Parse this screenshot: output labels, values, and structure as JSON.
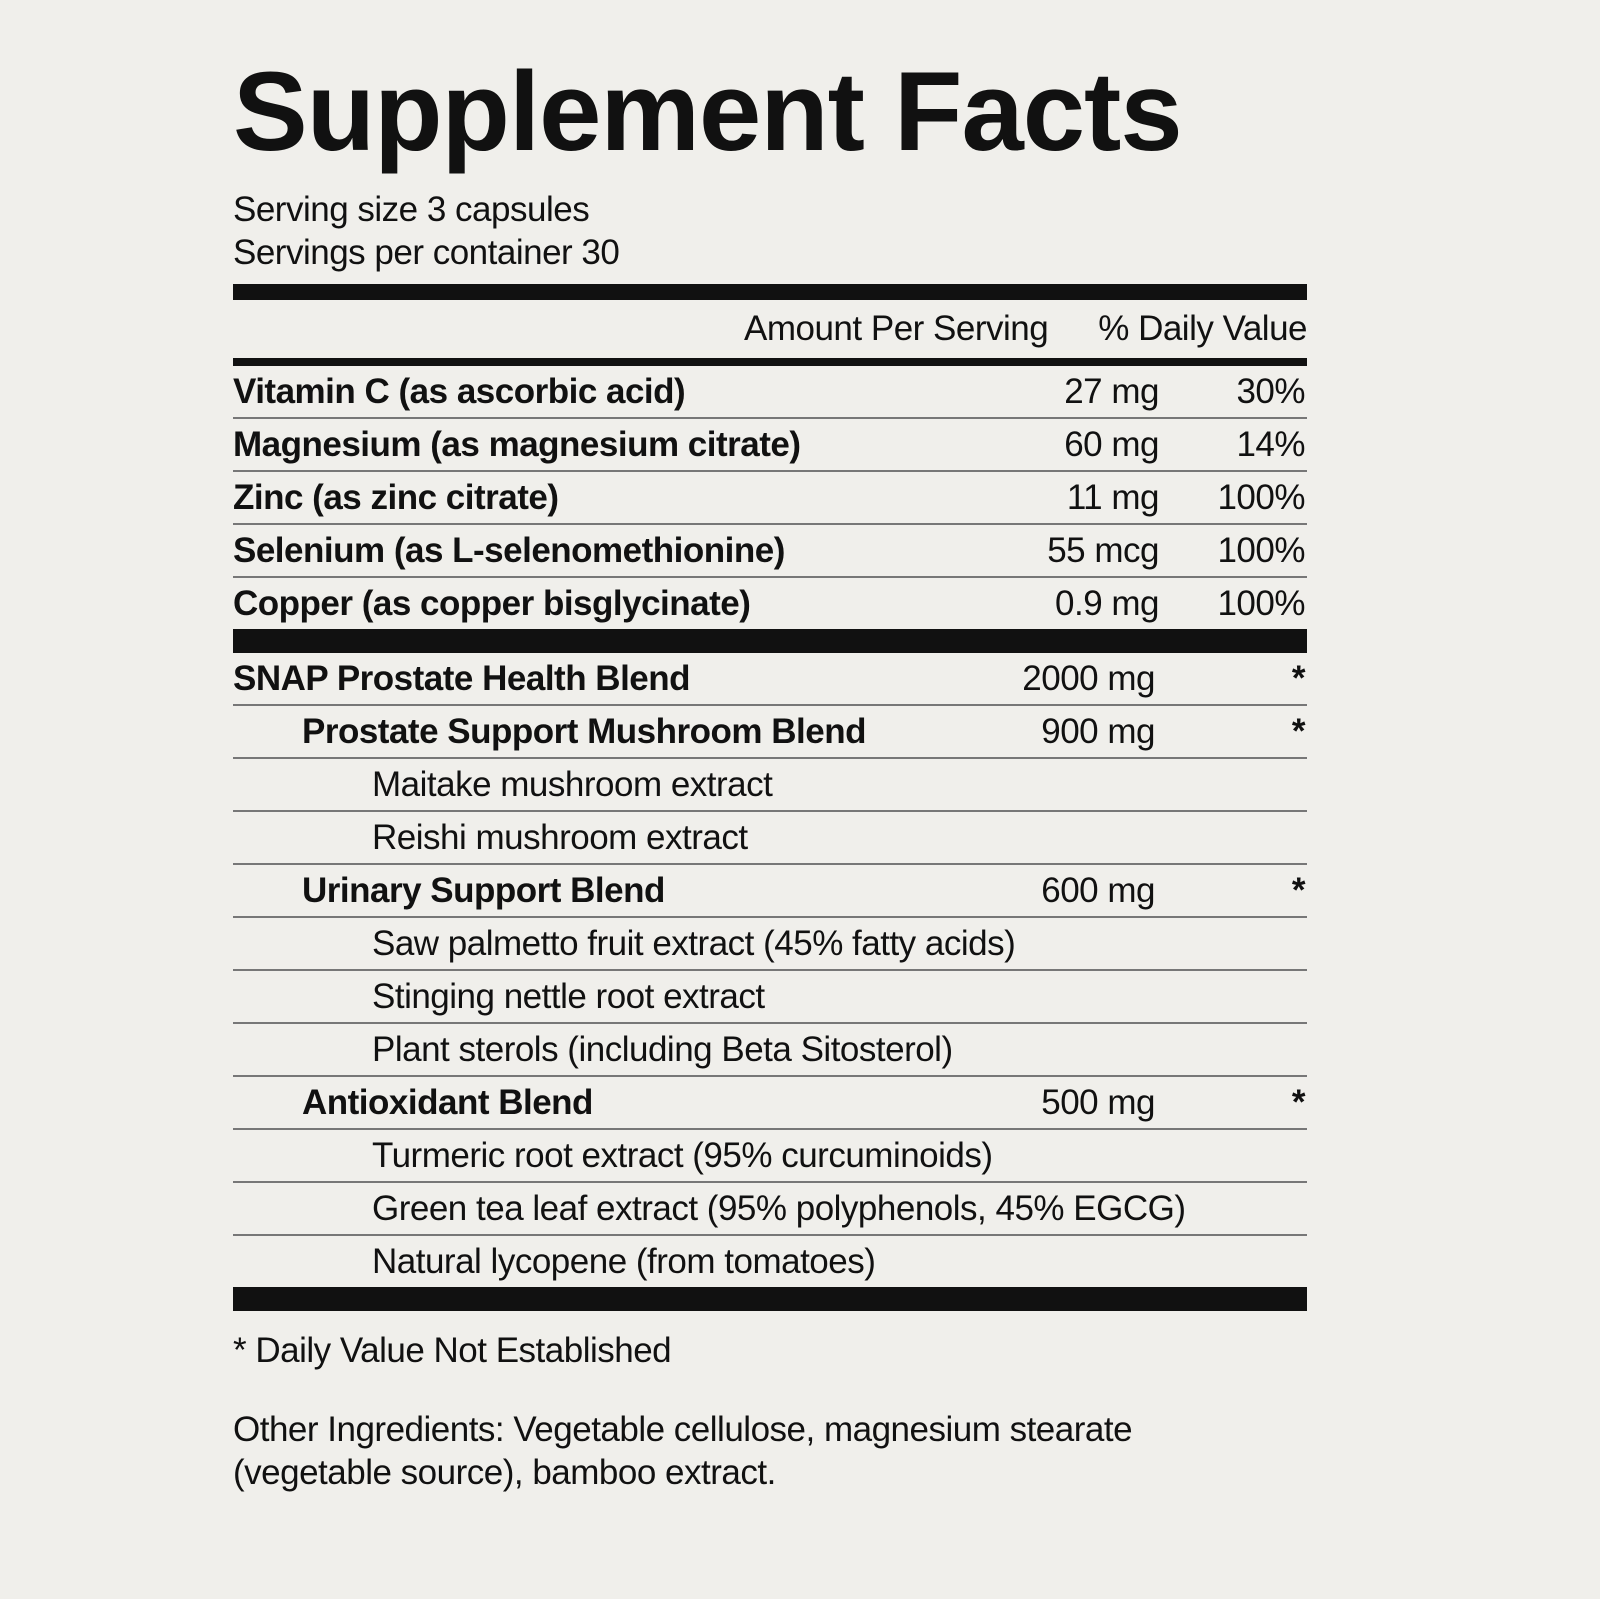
{
  "title": "Supplement Facts",
  "serving_size": "Serving size 3 capsules",
  "servings_per_container": "Servings per container 30",
  "header": {
    "amount": "Amount Per Serving",
    "daily_value": "% Daily Value"
  },
  "nutrients": [
    {
      "name": "Vitamin C (as ascorbic acid)",
      "amount": "27 mg",
      "dv": "30%"
    },
    {
      "name": "Magnesium (as magnesium citrate)",
      "amount": "60 mg",
      "dv": "14%"
    },
    {
      "name": "Zinc (as zinc citrate)",
      "amount": "11 mg",
      "dv": "100%"
    },
    {
      "name": "Selenium (as L-selenomethionine)",
      "amount": "55 mcg",
      "dv": "100%"
    },
    {
      "name": "Copper (as copper bisglycinate)",
      "amount": "0.9 mg",
      "dv": "100%"
    }
  ],
  "blend": [
    {
      "name": "SNAP Prostate Health Blend",
      "amount": "2000 mg",
      "dv": "*",
      "level": 0,
      "bold": true
    },
    {
      "name": "Prostate Support Mushroom Blend",
      "amount": "900 mg",
      "dv": "*",
      "level": 1,
      "bold": true
    },
    {
      "name": "Maitake mushroom extract",
      "amount": "",
      "dv": "",
      "level": 2,
      "bold": false
    },
    {
      "name": "Reishi mushroom extract",
      "amount": "",
      "dv": "",
      "level": 2,
      "bold": false
    },
    {
      "name": "Urinary Support Blend",
      "amount": "600 mg",
      "dv": "*",
      "level": 1,
      "bold": true
    },
    {
      "name": "Saw palmetto fruit extract (45% fatty acids)",
      "amount": "",
      "dv": "",
      "level": 2,
      "bold": false
    },
    {
      "name": "Stinging nettle root extract",
      "amount": "",
      "dv": "",
      "level": 2,
      "bold": false
    },
    {
      "name": "Plant sterols (including Beta Sitosterol)",
      "amount": "",
      "dv": "",
      "level": 2,
      "bold": false
    },
    {
      "name": "Antioxidant Blend",
      "amount": "500 mg",
      "dv": "*",
      "level": 1,
      "bold": true
    },
    {
      "name": "Turmeric root extract (95% curcuminoids)",
      "amount": "",
      "dv": "",
      "level": 2,
      "bold": false
    },
    {
      "name": "Green tea leaf extract (95% polyphenols, 45% EGCG)",
      "amount": "",
      "dv": "",
      "level": 2,
      "bold": false
    },
    {
      "name": "Natural lycopene (from tomatoes)",
      "amount": "",
      "dv": "",
      "level": 2,
      "bold": false
    }
  ],
  "footnote": "* Daily Value Not Established",
  "other_ingredients": [
    "Other Ingredients: Vegetable cellulose, magnesium stearate",
    "(vegetable source), bamboo extract."
  ]
}
